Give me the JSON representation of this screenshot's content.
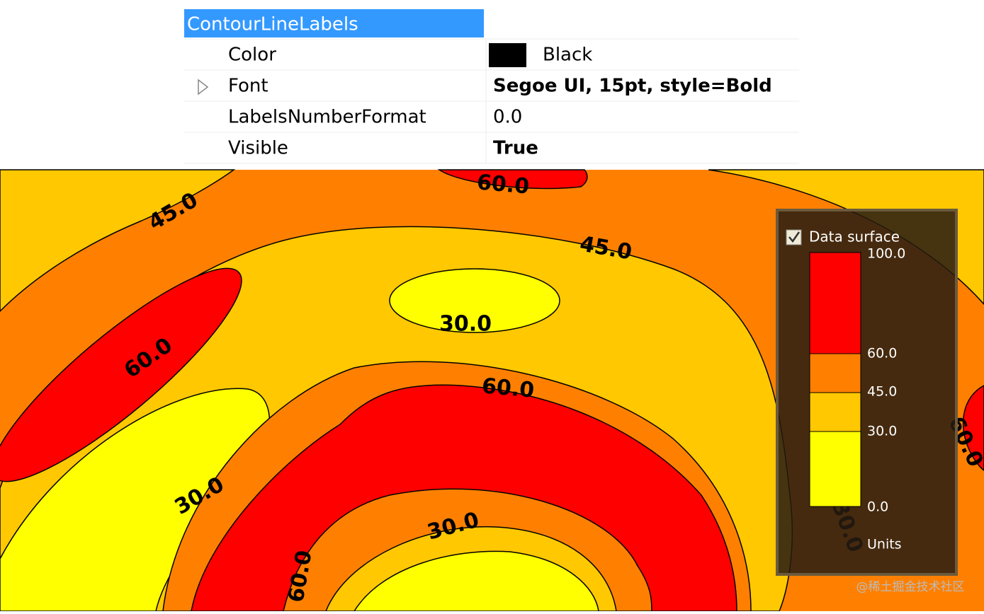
{
  "properties": {
    "header": "ContourLineLabels",
    "rows": [
      [
        "Color",
        "Black"
      ],
      [
        "Font",
        "Segoe UI, 15pt, style=Bold"
      ],
      [
        "LabelsNumberFormat",
        "0.0"
      ],
      [
        "Visible",
        "True"
      ]
    ]
  },
  "contour_labels": [
    "60.0",
    "45.0",
    "45.0",
    "30.0",
    "60.0",
    "60.0",
    "30.0",
    "30.0",
    "60.0",
    "60.0",
    "30.0"
  ],
  "legend": {
    "title": "Data surface",
    "levels": [
      "100.0",
      "60.0",
      "45.0",
      "30.0",
      "0.0"
    ],
    "units": "Units"
  },
  "watermark": "@稀土掘金技术社区"
}
